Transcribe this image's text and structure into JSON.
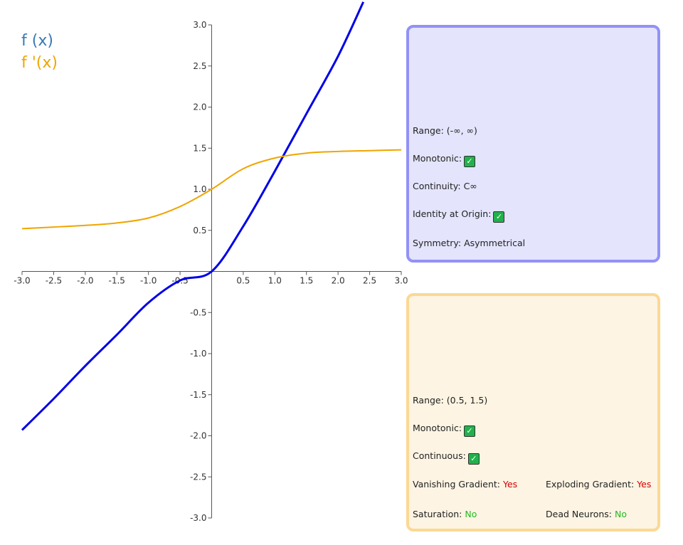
{
  "legend": {
    "f_label": "f (x)",
    "df_label": "f '(x)",
    "f_color": "#3a7ab5",
    "df_color": "#f0a500"
  },
  "chart_data": {
    "type": "line",
    "title": "",
    "xlabel": "",
    "ylabel": "",
    "xlim": [
      -3.0,
      3.0
    ],
    "ylim": [
      -3.0,
      3.0
    ],
    "x_ticks": [
      "-3.0",
      "-2.5",
      "-2.0",
      "-1.5",
      "-1.0",
      "-0.5",
      "0.5",
      "1.0",
      "1.5",
      "2.0",
      "2.5",
      "3.0"
    ],
    "y_ticks": [
      "3.0",
      "2.5",
      "2.0",
      "1.5",
      "1.0",
      "0.5",
      "-0.5",
      "-1.0",
      "-1.5",
      "-2.0",
      "-2.5",
      "-3.0"
    ],
    "grid": false,
    "series": [
      {
        "name": "f (x)",
        "color": "#0000e6",
        "points": [
          [
            -3.0,
            -1.93
          ],
          [
            -2.5,
            -1.55
          ],
          [
            -2.0,
            -1.15
          ],
          [
            -1.5,
            -0.77
          ],
          [
            -1.0,
            -0.38
          ],
          [
            -0.5,
            -0.11
          ],
          [
            0.0,
            0.0
          ],
          [
            0.5,
            0.55
          ],
          [
            1.0,
            1.22
          ],
          [
            1.5,
            1.92
          ],
          [
            2.0,
            2.62
          ],
          [
            2.4,
            3.28
          ]
        ]
      },
      {
        "name": "f '(x)",
        "color": "#f0a500",
        "points": [
          [
            -3.0,
            0.52
          ],
          [
            -2.5,
            0.54
          ],
          [
            -2.0,
            0.56
          ],
          [
            -1.5,
            0.59
          ],
          [
            -1.0,
            0.65
          ],
          [
            -0.5,
            0.79
          ],
          [
            0.0,
            1.0
          ],
          [
            0.5,
            1.25
          ],
          [
            1.0,
            1.38
          ],
          [
            1.5,
            1.44
          ],
          [
            2.0,
            1.46
          ],
          [
            2.5,
            1.47
          ],
          [
            3.0,
            1.48
          ]
        ]
      }
    ]
  },
  "panel_f": {
    "range_label": "Range: (-∞, ∞)",
    "monotonic_label": "Monotonic:",
    "monotonic_check": "✓",
    "continuity_label": "Continuity: C∞",
    "identity_label": "Identity at Origin:",
    "identity_check": "✓",
    "symmetry_label": "Symmetry: Asymmetrical",
    "background": "#e4e4fd",
    "border": "#9292f6"
  },
  "panel_df": {
    "range_label": "Range: (0.5, 1.5)",
    "monotonic_label": "Monotonic:",
    "monotonic_check": "✓",
    "continuous_label": "Continuous:",
    "continuous_check": "✓",
    "vanishing_label": "Vanishing Gradient: ",
    "vanishing_value": "Yes",
    "exploding_label": "Exploding Gradient: ",
    "exploding_value": "Yes",
    "saturation_label": "Saturation: ",
    "saturation_value": "No",
    "dead_label": "Dead Neurons: ",
    "dead_value": "No",
    "background": "#fdf4e3",
    "border": "#fcd893"
  }
}
